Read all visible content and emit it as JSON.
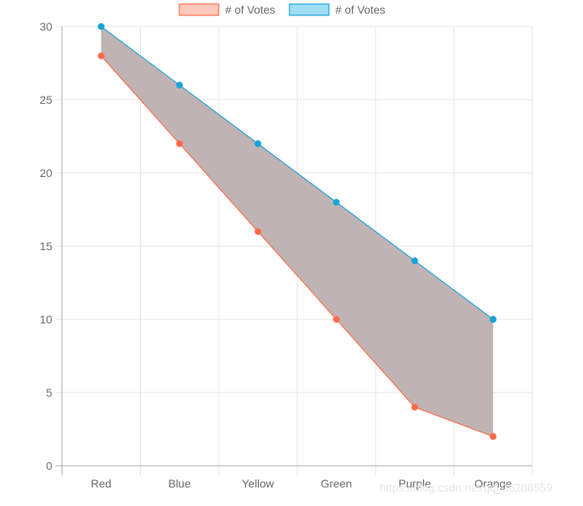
{
  "chart_data": {
    "type": "area",
    "categories": [
      "Red",
      "Blue",
      "Yellow",
      "Green",
      "Purple",
      "Orange"
    ],
    "series": [
      {
        "name": "# of Votes",
        "values": [
          28,
          22,
          16,
          10,
          4,
          2
        ],
        "line_color": "#ff6b4a",
        "legend_fill": "#ffc9bd",
        "legend_border": "#ff6b4a"
      },
      {
        "name": "# of Votes",
        "values": [
          30,
          26,
          22,
          18,
          14,
          10
        ],
        "line_color": "#1aa3d9",
        "legend_fill": "#a0def3",
        "legend_border": "#1aa3d9"
      }
    ],
    "fill_between_color": "#c0b3b3",
    "ylim": [
      0,
      30
    ],
    "yticks": [
      0,
      5,
      10,
      15,
      20,
      25,
      30
    ],
    "grid": true,
    "legend_position": "top-center",
    "title": "",
    "xlabel": "",
    "ylabel": ""
  },
  "watermark": "https://blog.csdn.net/qq_36288559"
}
